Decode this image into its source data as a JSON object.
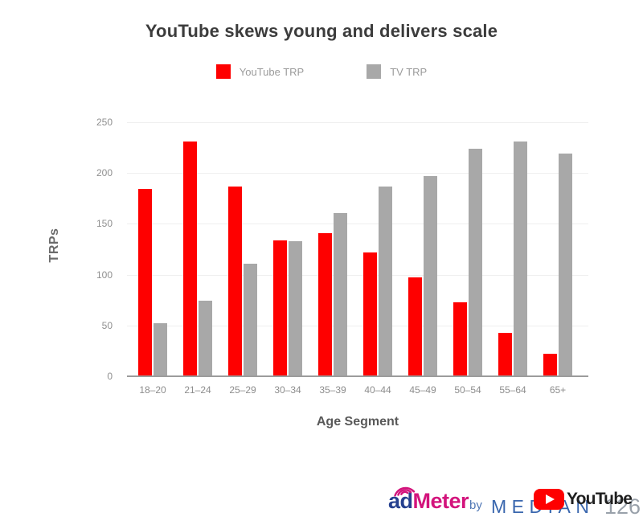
{
  "title": "YouTube skews young and delivers scale",
  "legend": [
    {
      "label": "YouTube TRP",
      "color": "#fe0000"
    },
    {
      "label": "TV TRP",
      "color": "#a8a8a8"
    }
  ],
  "chart_data": {
    "type": "bar",
    "title": "YouTube skews young and delivers scale",
    "categories": [
      "18–20",
      "21–24",
      "25–29",
      "30–34",
      "35–39",
      "40–44",
      "45–49",
      "50–54",
      "55–64",
      "65+"
    ],
    "series": [
      {
        "name": "YouTube TRP",
        "color": "#fe0000",
        "values": [
          184,
          231,
          187,
          134,
          141,
          122,
          97,
          73,
          43,
          22
        ]
      },
      {
        "name": "TV TRP",
        "color": "#a8a8a8",
        "values": [
          52,
          74,
          111,
          133,
          161,
          187,
          197,
          224,
          231,
          219
        ]
      }
    ],
    "xlabel": "Age Segment",
    "ylabel": "TRPs",
    "ylim": [
      0,
      250
    ],
    "yticks": [
      0,
      50,
      100,
      150,
      200,
      250
    ],
    "grid": true,
    "legend_position": "top"
  },
  "footer": {
    "admeter_ad": "ad",
    "admeter_meter": "Meter",
    "by": "by",
    "median": "MEDIAN",
    "youtube_wordmark": "YouTube",
    "page_number": "126"
  }
}
